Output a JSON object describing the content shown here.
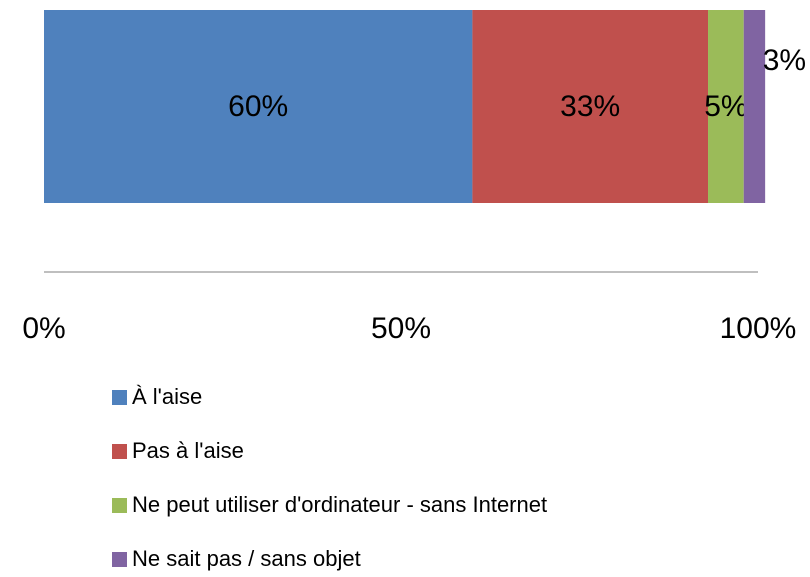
{
  "chart_data": {
    "type": "bar",
    "orientation": "horizontal",
    "stacked": true,
    "categories": [
      null
    ],
    "series": [
      {
        "name": "À l'aise",
        "color": "#4f81bd",
        "values": [
          60
        ],
        "value_labels": [
          "60%"
        ]
      },
      {
        "name": "Pas à l'aise",
        "color": "#c0504d",
        "values": [
          33
        ],
        "value_labels": [
          "33%"
        ]
      },
      {
        "name": "Ne peut utiliser d'ordinateur - sans Internet",
        "color": "#9bbb59",
        "values": [
          5
        ],
        "value_labels": [
          "5%"
        ]
      },
      {
        "name": "Ne sait pas / sans objet",
        "color": "#8064a2",
        "values": [
          3
        ],
        "value_labels": [
          "3%"
        ]
      }
    ],
    "xlim": [
      0,
      100
    ],
    "xticks": [
      {
        "value": 0,
        "label": "0%"
      },
      {
        "value": 50,
        "label": "50%"
      },
      {
        "value": 100,
        "label": "100%"
      }
    ],
    "legend": "bottom"
  }
}
